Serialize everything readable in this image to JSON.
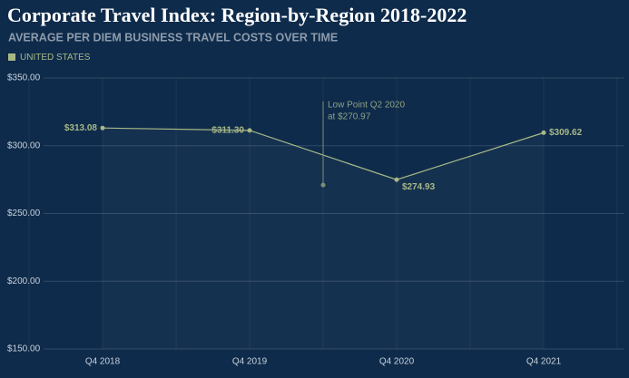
{
  "chart_data": {
    "type": "line",
    "title": "Corporate Travel Index: Region-by-Region 2018-2022",
    "subtitle": "AVERAGE PER DIEM BUSINESS TRAVEL COSTS OVER TIME",
    "categories": [
      "Q4 2018",
      "Q4 2019",
      "Q4 2020",
      "Q4 2021"
    ],
    "series": [
      {
        "name": "UNITED STATES",
        "color": "#a7b886",
        "values": [
          313.08,
          311.3,
          274.93,
          309.62
        ],
        "value_labels": [
          "$313.08",
          "$311.30",
          "$274.93",
          "$309.62"
        ]
      }
    ],
    "annotation": {
      "text": [
        "Low Point Q2 2020",
        "at $270.97"
      ],
      "value": 270.97
    },
    "ylim": [
      150,
      350
    ],
    "yticks": [
      {
        "value": 150,
        "label": "$150.00"
      },
      {
        "value": 200,
        "label": "$200.00"
      },
      {
        "value": 250,
        "label": "$250.00"
      },
      {
        "value": 300,
        "label": "$300.00"
      },
      {
        "value": 350,
        "label": "$350.00"
      }
    ],
    "grid": true
  }
}
